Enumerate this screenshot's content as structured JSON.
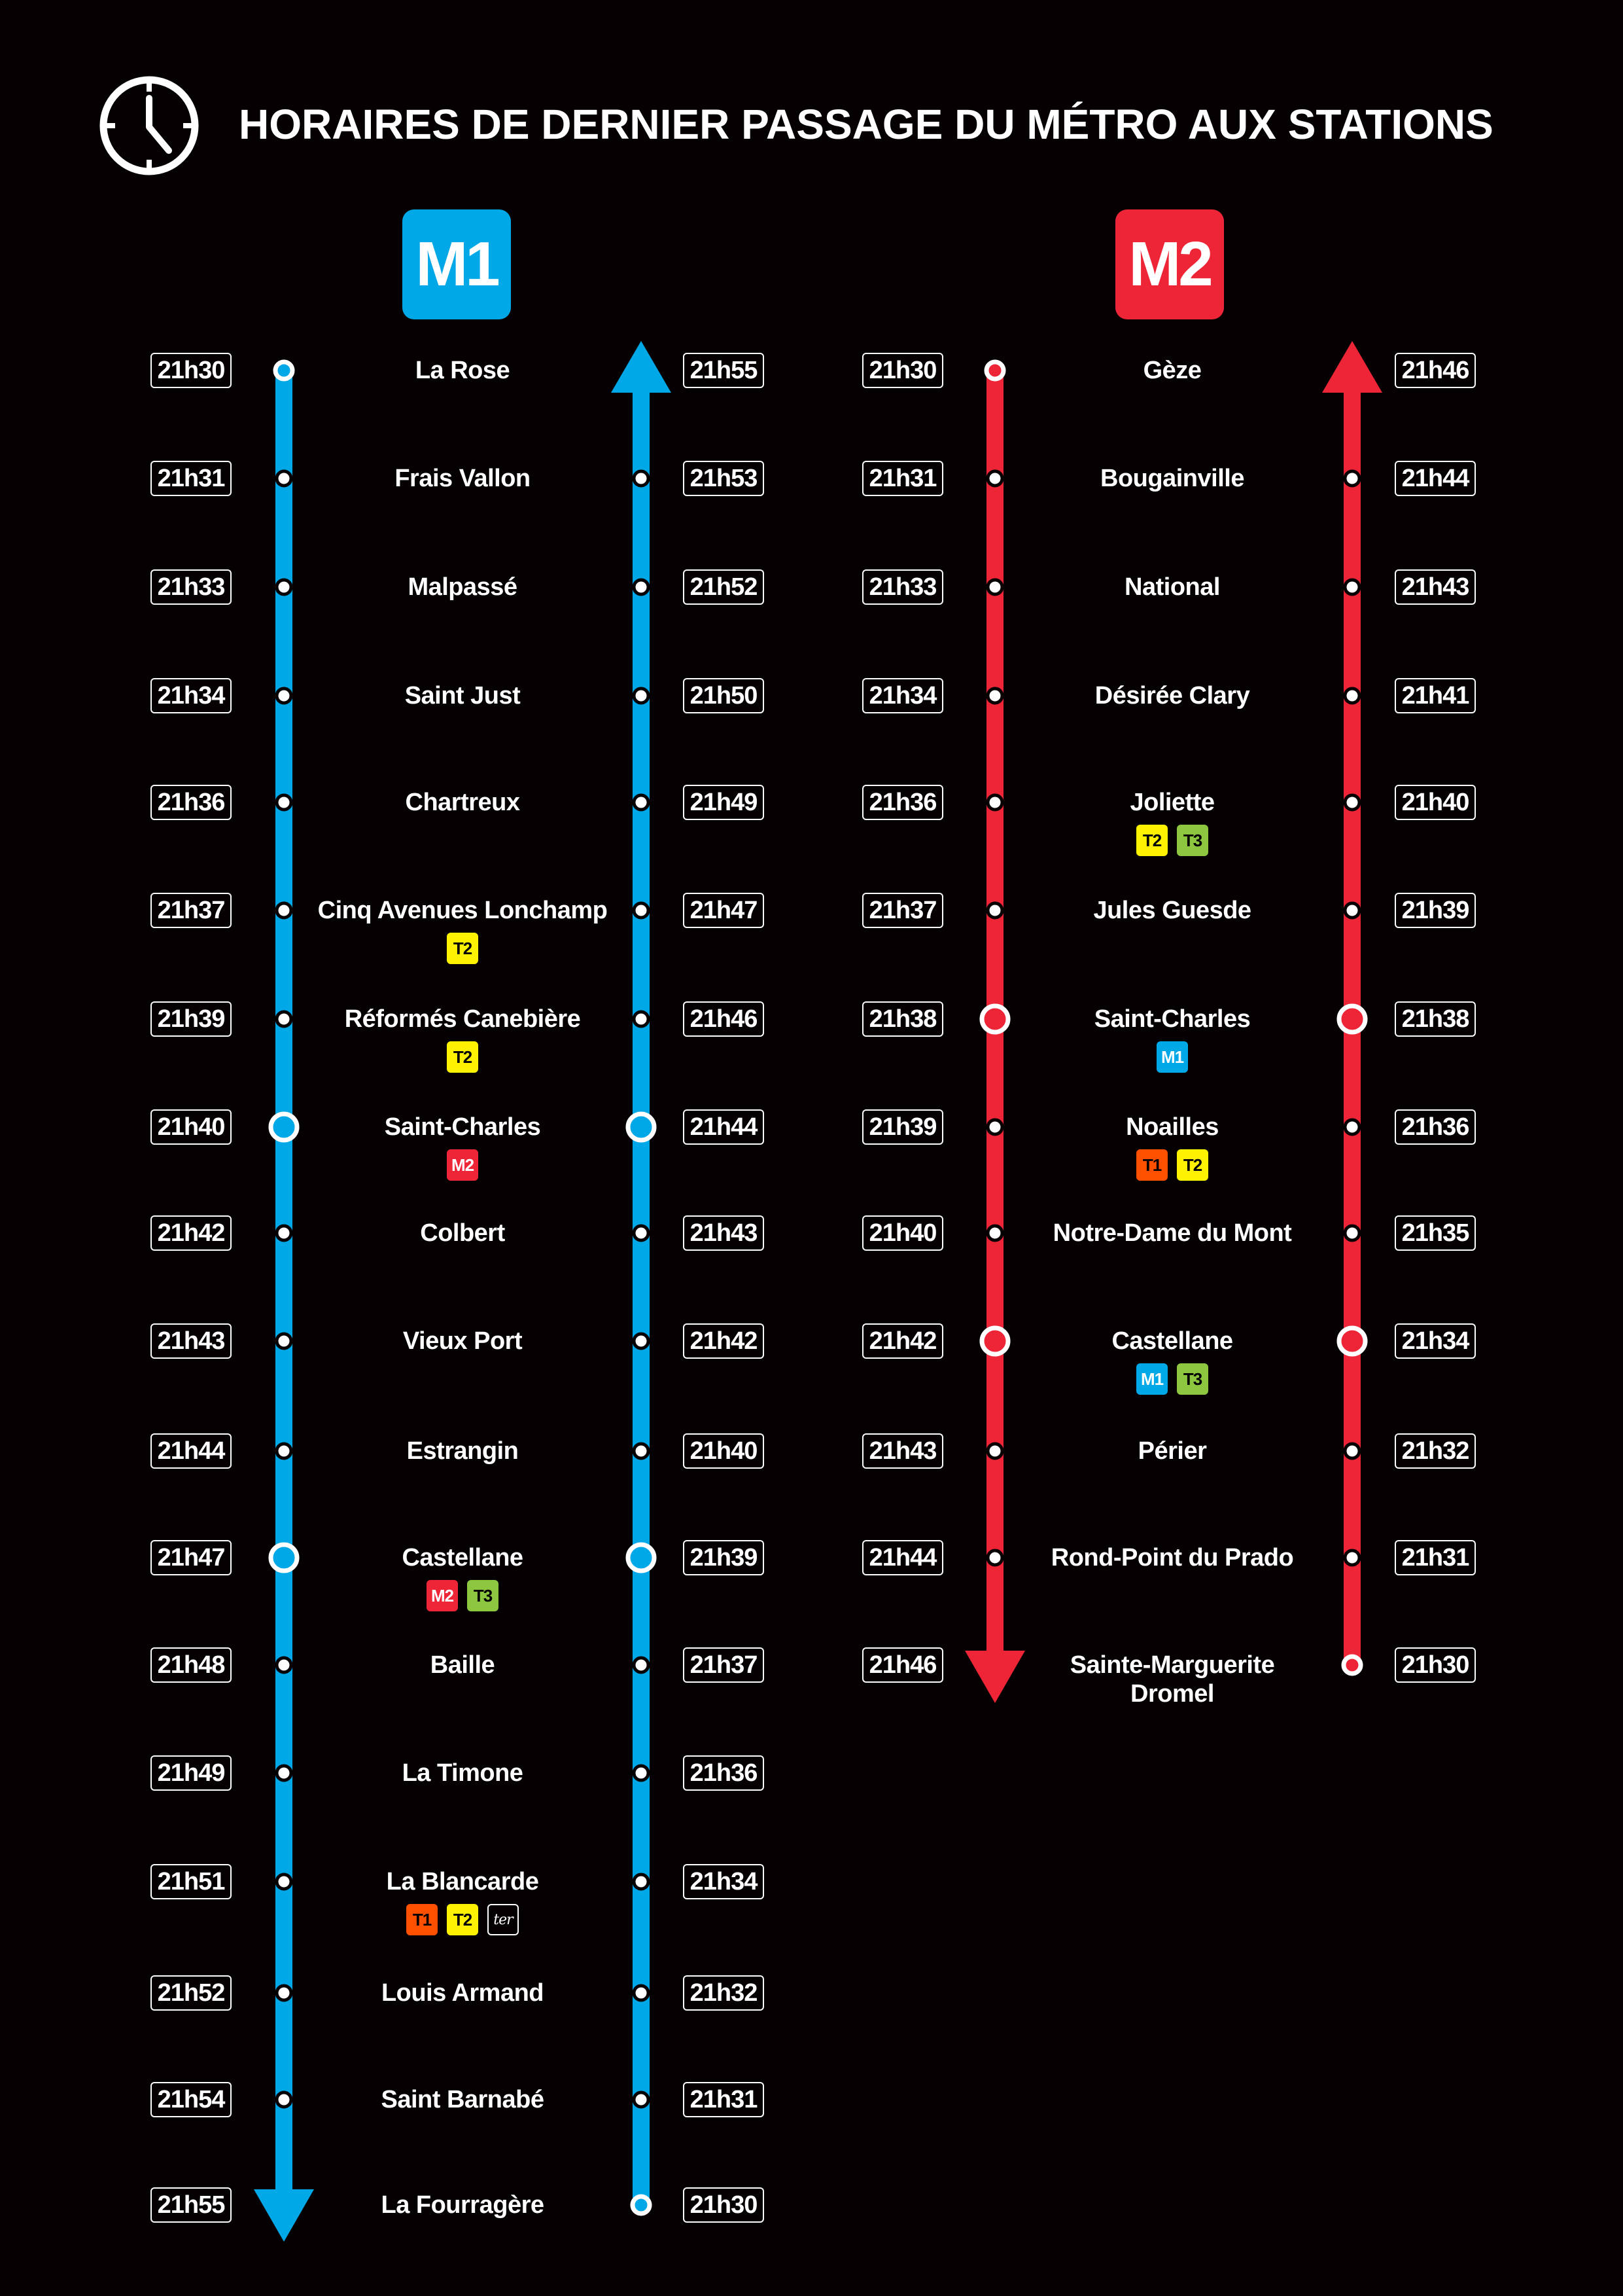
{
  "title": "HORAIRES DE DERNIER PASSAGE DU MÉTRO AUX STATIONS",
  "colors": {
    "M1": "#00a8e8",
    "M2": "#ee2537",
    "T1": "#ff5000",
    "T2": "#fff200",
    "T3": "#8dc63f",
    "ter": "#050102"
  },
  "connection_labels": {
    "M1": "M1",
    "M2": "M2",
    "T1": "T1",
    "T2": "T2",
    "T3": "T3",
    "ter": "ter"
  },
  "lines": [
    {
      "id": "M1",
      "label": "M1",
      "stations": [
        {
          "name": "La Rose",
          "left": "21h30",
          "right": "21h55",
          "type": "start",
          "conns": []
        },
        {
          "name": "Frais Vallon",
          "left": "21h31",
          "right": "21h53",
          "type": "stop",
          "conns": []
        },
        {
          "name": "Malpassé",
          "left": "21h33",
          "right": "21h52",
          "type": "stop",
          "conns": []
        },
        {
          "name": "Saint Just",
          "left": "21h34",
          "right": "21h50",
          "type": "stop",
          "conns": []
        },
        {
          "name": "Chartreux",
          "left": "21h36",
          "right": "21h49",
          "type": "stop",
          "conns": []
        },
        {
          "name": "Cinq Avenues Lonchamp",
          "left": "21h37",
          "right": "21h47",
          "type": "stop",
          "conns": [
            "T2"
          ]
        },
        {
          "name": "Réformés Canebière",
          "left": "21h39",
          "right": "21h46",
          "type": "stop",
          "conns": [
            "T2"
          ]
        },
        {
          "name": "Saint-Charles",
          "left": "21h40",
          "right": "21h44",
          "type": "interchange",
          "conns": [
            "M2"
          ]
        },
        {
          "name": "Colbert",
          "left": "21h42",
          "right": "21h43",
          "type": "stop",
          "conns": []
        },
        {
          "name": "Vieux Port",
          "left": "21h43",
          "right": "21h42",
          "type": "stop",
          "conns": []
        },
        {
          "name": "Estrangin",
          "left": "21h44",
          "right": "21h40",
          "type": "stop",
          "conns": []
        },
        {
          "name": "Castellane",
          "left": "21h47",
          "right": "21h39",
          "type": "interchange",
          "conns": [
            "M2",
            "T3"
          ]
        },
        {
          "name": "Baille",
          "left": "21h48",
          "right": "21h37",
          "type": "stop",
          "conns": []
        },
        {
          "name": "La Timone",
          "left": "21h49",
          "right": "21h36",
          "type": "stop",
          "conns": []
        },
        {
          "name": "La Blancarde",
          "left": "21h51",
          "right": "21h34",
          "type": "stop",
          "conns": [
            "T1",
            "T2",
            "ter"
          ]
        },
        {
          "name": "Louis Armand",
          "left": "21h52",
          "right": "21h32",
          "type": "stop",
          "conns": []
        },
        {
          "name": "Saint Barnabé",
          "left": "21h54",
          "right": "21h31",
          "type": "stop",
          "conns": []
        },
        {
          "name": "La Fourragère",
          "left": "21h55",
          "right": "21h30",
          "type": "end",
          "conns": []
        }
      ]
    },
    {
      "id": "M2",
      "label": "M2",
      "stations": [
        {
          "name": "Gèze",
          "left": "21h30",
          "right": "21h46",
          "type": "start",
          "conns": []
        },
        {
          "name": "Bougainville",
          "left": "21h31",
          "right": "21h44",
          "type": "stop",
          "conns": []
        },
        {
          "name": "National",
          "left": "21h33",
          "right": "21h43",
          "type": "stop",
          "conns": []
        },
        {
          "name": "Désirée Clary",
          "left": "21h34",
          "right": "21h41",
          "type": "stop",
          "conns": []
        },
        {
          "name": "Joliette",
          "left": "21h36",
          "right": "21h40",
          "type": "stop",
          "conns": [
            "T2",
            "T3"
          ]
        },
        {
          "name": "Jules Guesde",
          "left": "21h37",
          "right": "21h39",
          "type": "stop",
          "conns": []
        },
        {
          "name": "Saint-Charles",
          "left": "21h38",
          "right": "21h38",
          "type": "interchange",
          "conns": [
            "M1"
          ]
        },
        {
          "name": "Noailles",
          "left": "21h39",
          "right": "21h36",
          "type": "stop",
          "conns": [
            "T1",
            "T2"
          ]
        },
        {
          "name": "Notre-Dame du Mont",
          "left": "21h40",
          "right": "21h35",
          "type": "stop",
          "conns": []
        },
        {
          "name": "Castellane",
          "left": "21h42",
          "right": "21h34",
          "type": "interchange",
          "conns": [
            "M1",
            "T3"
          ]
        },
        {
          "name": "Périer",
          "left": "21h43",
          "right": "21h32",
          "type": "stop",
          "conns": []
        },
        {
          "name": "Rond-Point du Prado",
          "left": "21h44",
          "right": "21h31",
          "type": "stop",
          "conns": []
        },
        {
          "name": "Sainte-Marguerite Dromel",
          "left": "21h46",
          "right": "21h30",
          "type": "end",
          "conns": []
        }
      ]
    }
  ]
}
